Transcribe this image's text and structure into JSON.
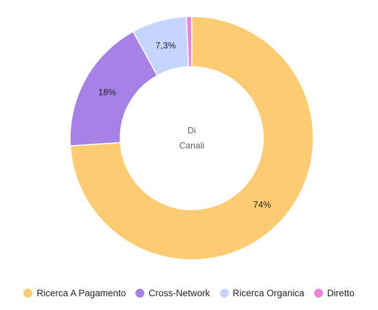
{
  "chart_data": {
    "type": "pie",
    "variant": "donut",
    "center_text": [
      "Di",
      "Canali"
    ],
    "categories": [
      "Ricerca A Pagamento",
      "Cross-Network",
      "Ricerca Organica",
      "Diretto"
    ],
    "values": [
      74.0,
      18.0,
      7.3,
      0.7
    ],
    "data_labels": [
      "74%",
      "18%",
      "7,3%",
      ""
    ],
    "colors": [
      "#FDCB71",
      "#A682E6",
      "#C5D5FF",
      "#E984D8"
    ],
    "legend_position": "bottom"
  }
}
